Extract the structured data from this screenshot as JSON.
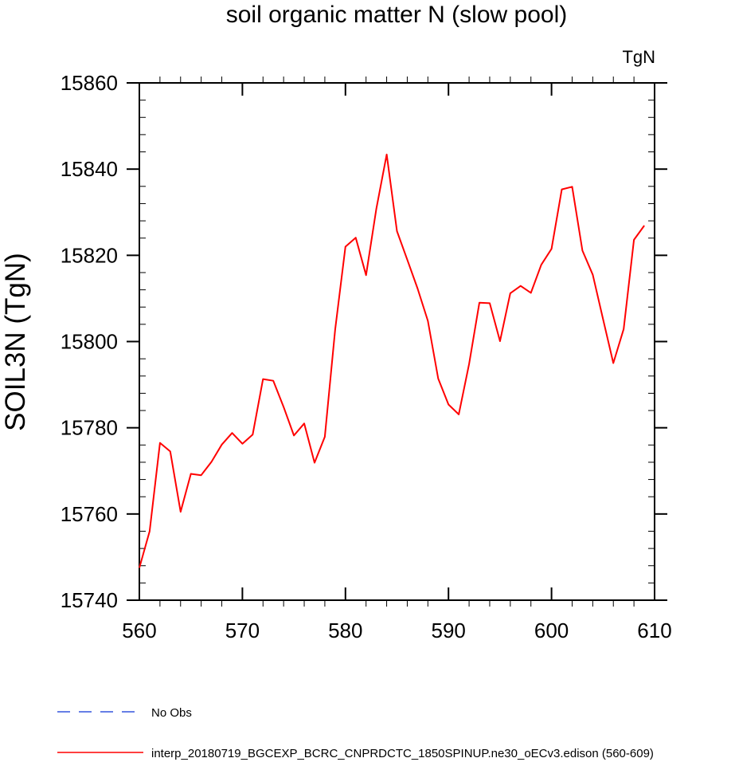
{
  "chart_data": {
    "type": "line",
    "title": "soil organic matter N (slow pool)",
    "units_label": "TgN",
    "xlabel": "",
    "ylabel": "SOIL3N  (TgN)",
    "xlim": [
      560,
      610
    ],
    "ylim": [
      15740,
      15860
    ],
    "x_ticks": [
      560,
      570,
      580,
      590,
      600,
      610
    ],
    "y_ticks": [
      15740,
      15760,
      15780,
      15800,
      15820,
      15840,
      15860
    ],
    "x_tick_labels": [
      "560",
      "570",
      "580",
      "590",
      "600",
      "610"
    ],
    "y_tick_labels": [
      "15740",
      "15760",
      "15780",
      "15800",
      "15820",
      "15840",
      "15860"
    ],
    "x_minor_step": 2,
    "y_minor_step": 4,
    "series": [
      {
        "name": "interp_20180719_BGCEXP_BCRC_CNPRDCTC_1850SPINUP.ne30_oECv3.edison (560-609)",
        "color": "#ff0000",
        "dash": "solid",
        "x": [
          560,
          561,
          562,
          563,
          564,
          565,
          566,
          567,
          568,
          569,
          570,
          571,
          572,
          573,
          574,
          575,
          576,
          577,
          578,
          579,
          580,
          581,
          582,
          583,
          584,
          585,
          586,
          587,
          588,
          589,
          590,
          591,
          592,
          593,
          594,
          595,
          596,
          597,
          598,
          599,
          600,
          601,
          602,
          603,
          604,
          605,
          606,
          607,
          608,
          609
        ],
        "values": [
          15747.5,
          15756.0,
          15776.5,
          15774.5,
          15760.5,
          15769.3,
          15769.0,
          15772.1,
          15776.1,
          15778.8,
          15776.3,
          15778.4,
          15791.3,
          15790.9,
          15784.8,
          15778.2,
          15781.0,
          15771.9,
          15777.9,
          15802.8,
          15822.0,
          15824.1,
          15815.4,
          15830.8,
          15843.4,
          15825.6,
          15819.0,
          15812.3,
          15804.8,
          15791.4,
          15785.4,
          15783.1,
          15794.8,
          15809.0,
          15808.9,
          15800.1,
          15811.2,
          15812.9,
          15811.3,
          15817.8,
          15821.5,
          15835.3,
          15835.9,
          15821.1,
          15815.5,
          15805.2,
          15795.0,
          15802.9,
          15823.6,
          15826.9
        ]
      },
      {
        "name": "No Obs",
        "color": "#3355dd",
        "dash": "dashed",
        "x": [],
        "values": []
      }
    ],
    "legend": [
      {
        "label": "No Obs",
        "color": "#3355dd",
        "dash": "dashed"
      },
      {
        "label": "interp_20180719_BGCEXP_BCRC_CNPRDCTC_1850SPINUP.ne30_oECv3.edison (560-609)",
        "color": "#ff0000",
        "dash": "solid"
      }
    ],
    "legend_placement": "bottom",
    "grid": false
  }
}
